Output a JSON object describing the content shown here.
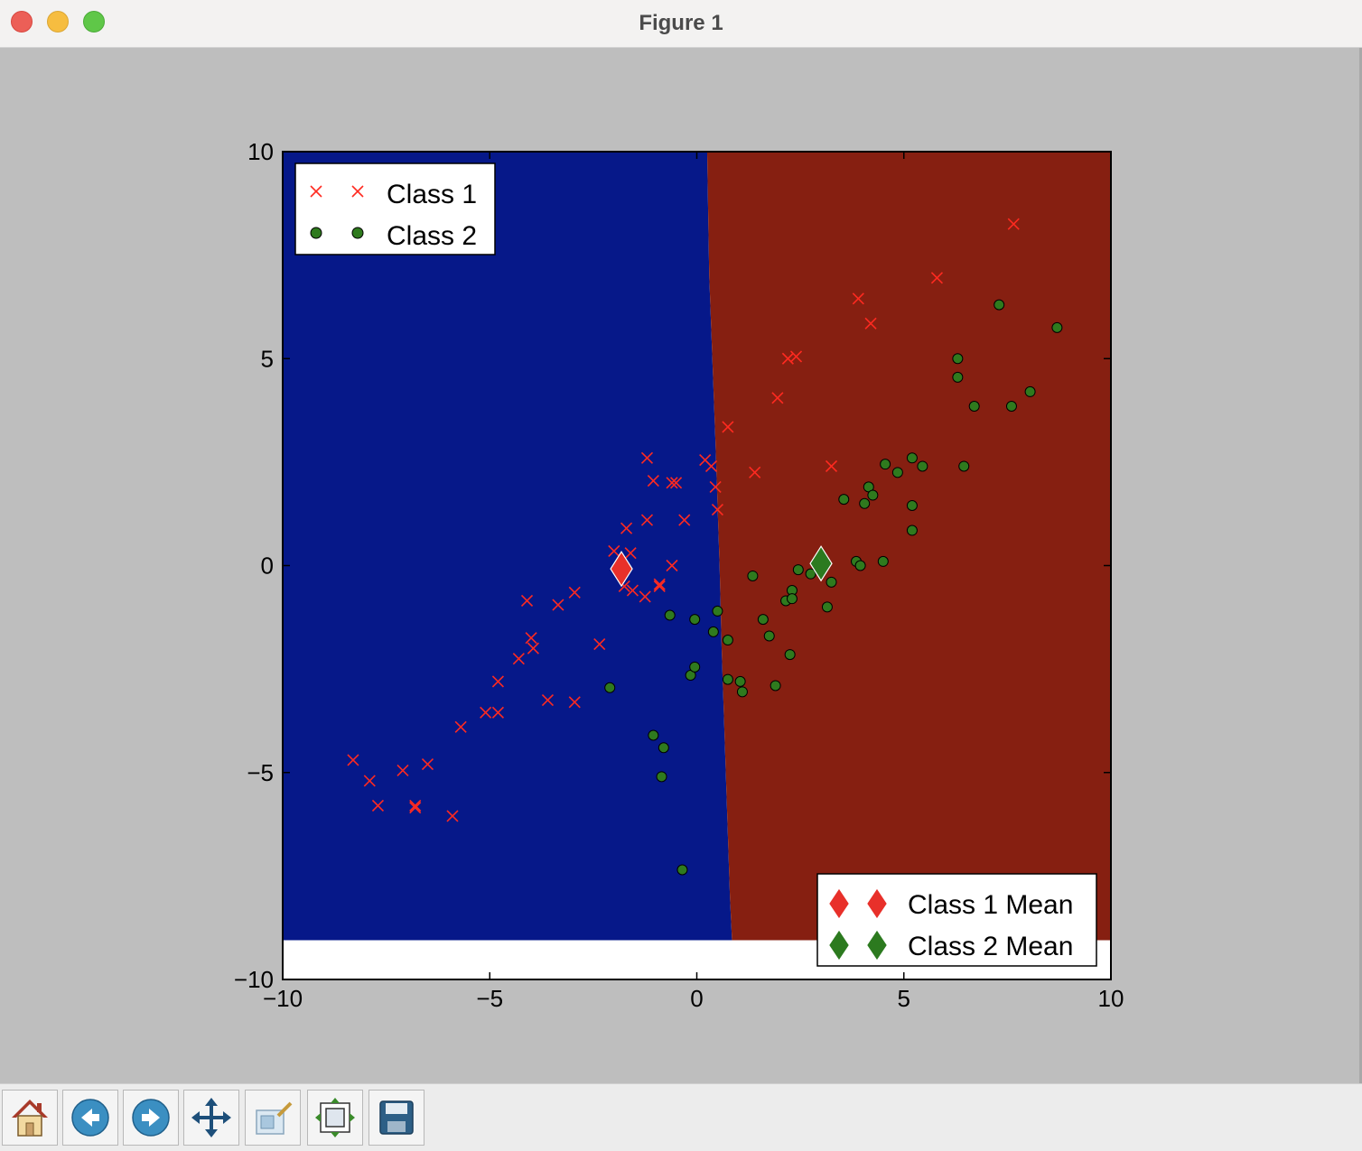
{
  "window": {
    "title": "Figure 1"
  },
  "toolbar": {
    "buttons": [
      "home-icon",
      "back-icon",
      "forward-icon",
      "pan-icon",
      "zoom-icon",
      "subplots-icon",
      "save-icon"
    ]
  },
  "colors": {
    "region_class1": "#061889",
    "region_class2": "#861f11",
    "class1": "#ff2a20",
    "class2": "#2f7a1e",
    "mean1": "#e8302a",
    "mean2": "#2c7a1f",
    "figure_bg": "#bebebe"
  },
  "chart_data": {
    "type": "scatter",
    "xlim": [
      -10,
      10
    ],
    "ylim": [
      -10,
      10
    ],
    "xticks": [
      -10,
      -5,
      0,
      5,
      10
    ],
    "yticks": [
      -10,
      -5,
      0,
      5,
      10
    ],
    "xtick_labels": [
      "−10",
      "−5",
      "0",
      "5",
      "10"
    ],
    "ytick_labels": [
      "−10",
      "−5",
      "0",
      "5",
      "10"
    ],
    "title": "",
    "xlabel": "",
    "ylabel": "",
    "grid": false,
    "decision_regions": {
      "y_range": [
        -9.05,
        10
      ],
      "boundary": [
        [
          0.25,
          10
        ],
        [
          0.3,
          7
        ],
        [
          0.45,
          3
        ],
        [
          0.55,
          0
        ],
        [
          0.6,
          -2
        ],
        [
          0.7,
          -5
        ],
        [
          0.8,
          -8
        ],
        [
          0.85,
          -9.05
        ]
      ],
      "left_label": "class1",
      "right_label": "class2"
    },
    "series": [
      {
        "name": "Class 1",
        "marker": "x",
        "points": [
          [
            -8.3,
            -4.7
          ],
          [
            -7.9,
            -5.2
          ],
          [
            -7.7,
            -5.8
          ],
          [
            -7.1,
            -4.95
          ],
          [
            -6.8,
            -5.8
          ],
          [
            -6.8,
            -5.85
          ],
          [
            -6.5,
            -4.8
          ],
          [
            -5.9,
            -6.05
          ],
          [
            -5.7,
            -3.9
          ],
          [
            -5.1,
            -3.55
          ],
          [
            -4.8,
            -3.55
          ],
          [
            -4.8,
            -2.8
          ],
          [
            -4.3,
            -2.25
          ],
          [
            -4.1,
            -0.85
          ],
          [
            -4.0,
            -1.75
          ],
          [
            -3.95,
            -2.0
          ],
          [
            -3.6,
            -3.25
          ],
          [
            -3.35,
            -0.95
          ],
          [
            -2.95,
            -0.65
          ],
          [
            -2.95,
            -3.3
          ],
          [
            -2.35,
            -1.9
          ],
          [
            -2.0,
            0.35
          ],
          [
            -1.7,
            0.9
          ],
          [
            -1.6,
            0.3
          ],
          [
            -1.75,
            -0.5
          ],
          [
            -1.55,
            -0.6
          ],
          [
            -1.2,
            1.1
          ],
          [
            -1.2,
            2.6
          ],
          [
            -1.05,
            2.05
          ],
          [
            -1.25,
            -0.75
          ],
          [
            -0.9,
            -0.45
          ],
          [
            -0.6,
            2.0
          ],
          [
            -0.5,
            2.0
          ],
          [
            -0.3,
            1.1
          ],
          [
            -0.6,
            0.0
          ],
          [
            0.2,
            2.55
          ],
          [
            0.35,
            2.4
          ],
          [
            0.45,
            1.9
          ],
          [
            0.5,
            1.35
          ],
          [
            0.75,
            3.35
          ],
          [
            1.4,
            2.25
          ],
          [
            1.95,
            4.05
          ],
          [
            2.2,
            5.0
          ],
          [
            2.4,
            5.05
          ],
          [
            3.25,
            2.4
          ],
          [
            3.9,
            6.45
          ],
          [
            4.2,
            5.85
          ],
          [
            5.8,
            6.95
          ],
          [
            7.65,
            8.25
          ],
          [
            -0.9,
            -0.5
          ]
        ]
      },
      {
        "name": "Class 2",
        "marker": "o",
        "points": [
          [
            -2.1,
            -2.95
          ],
          [
            -1.05,
            -4.1
          ],
          [
            -0.8,
            -4.4
          ],
          [
            -0.85,
            -5.1
          ],
          [
            -0.65,
            -1.2
          ],
          [
            -0.35,
            -7.35
          ],
          [
            -0.15,
            -2.65
          ],
          [
            -0.05,
            -2.45
          ],
          [
            -0.05,
            -1.3
          ],
          [
            0.4,
            -1.6
          ],
          [
            0.5,
            -1.1
          ],
          [
            0.75,
            -1.8
          ],
          [
            0.75,
            -2.75
          ],
          [
            1.05,
            -2.8
          ],
          [
            1.1,
            -3.05
          ],
          [
            1.35,
            -0.25
          ],
          [
            1.6,
            -1.3
          ],
          [
            1.75,
            -1.7
          ],
          [
            1.9,
            -2.9
          ],
          [
            2.15,
            -0.85
          ],
          [
            2.25,
            -2.15
          ],
          [
            2.3,
            -0.6
          ],
          [
            2.3,
            -0.8
          ],
          [
            2.45,
            -0.1
          ],
          [
            2.75,
            -0.2
          ],
          [
            3.15,
            -1.0
          ],
          [
            3.25,
            -0.4
          ],
          [
            3.55,
            1.6
          ],
          [
            3.85,
            0.1
          ],
          [
            3.95,
            -0.0
          ],
          [
            4.05,
            1.5
          ],
          [
            4.15,
            1.9
          ],
          [
            4.25,
            1.7
          ],
          [
            4.5,
            0.1
          ],
          [
            4.55,
            2.45
          ],
          [
            4.85,
            2.25
          ],
          [
            5.2,
            2.6
          ],
          [
            5.2,
            1.45
          ],
          [
            5.2,
            0.85
          ],
          [
            5.45,
            2.4
          ],
          [
            6.3,
            4.55
          ],
          [
            6.3,
            5.0
          ],
          [
            6.45,
            2.4
          ],
          [
            6.7,
            3.85
          ],
          [
            7.3,
            6.3
          ],
          [
            7.6,
            3.85
          ],
          [
            8.05,
            4.2
          ],
          [
            8.7,
            5.75
          ]
        ]
      },
      {
        "name": "Class 1 Mean",
        "marker": "D",
        "points": [
          [
            -1.82,
            -0.08
          ]
        ]
      },
      {
        "name": "Class 2 Mean",
        "marker": "D",
        "points": [
          [
            3.0,
            0.05
          ]
        ]
      }
    ],
    "legends": {
      "upper_left": {
        "placement": "upper-left",
        "entries": [
          "Class 1",
          "Class 2"
        ]
      },
      "lower_right": {
        "placement": "lower-right",
        "entries": [
          "Class 1 Mean",
          "Class 2 Mean"
        ]
      }
    }
  }
}
